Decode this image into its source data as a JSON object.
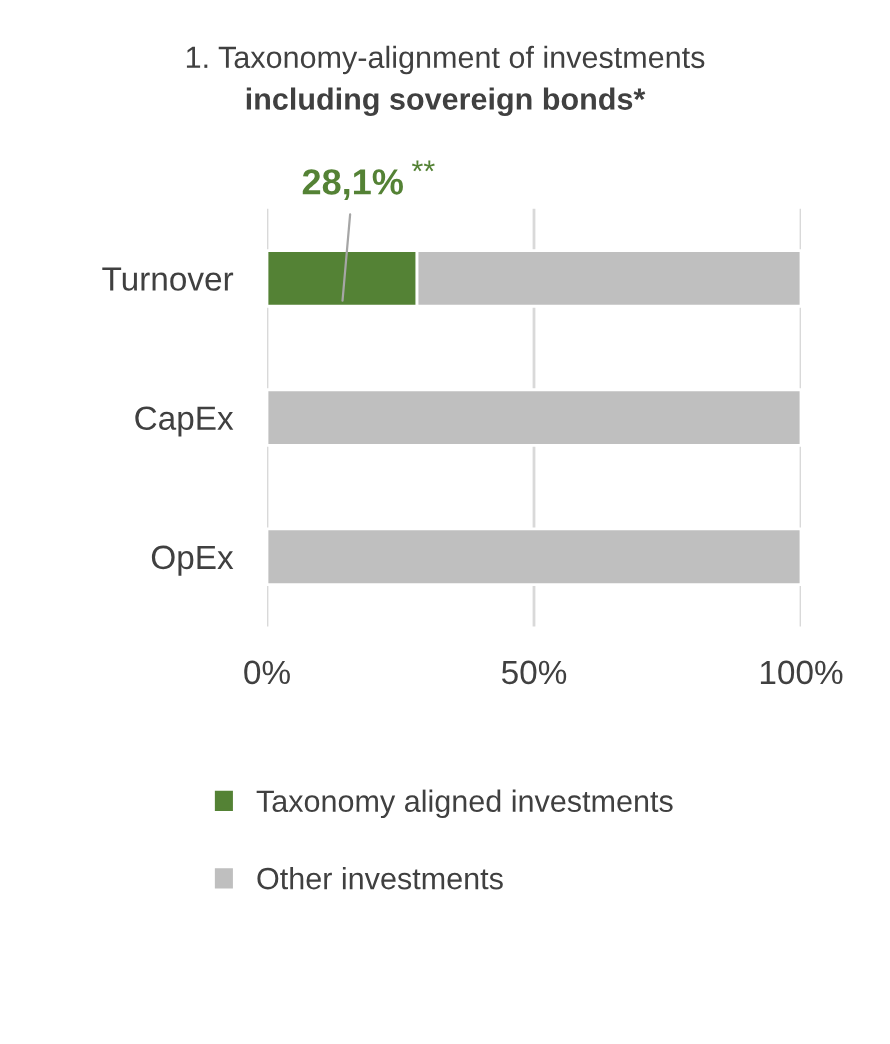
{
  "chart_data": {
    "type": "bar",
    "orientation": "horizontal",
    "stacked": true,
    "title": "1. Taxonomy-alignment of investments",
    "subtitle": "including sovereign bonds*",
    "categories": [
      "Turnover",
      "CapEx",
      "OpEx"
    ],
    "series": [
      {
        "name": "Taxonomy aligned investments",
        "color": "#548235",
        "values": [
          28.1,
          0,
          0
        ],
        "value_labels": [
          "28,1%",
          null,
          null
        ]
      },
      {
        "name": "Other investments",
        "color": "#bfbfbf",
        "values": [
          71.9,
          100,
          100
        ]
      }
    ],
    "xlim": [
      0,
      100
    ],
    "xticks": [
      {
        "value": 0,
        "label": "0%"
      },
      {
        "value": 50,
        "label": "50%"
      },
      {
        "value": 100,
        "label": "100%"
      }
    ],
    "grid": "x",
    "legend": "bottom",
    "annotations": [
      "**"
    ]
  }
}
